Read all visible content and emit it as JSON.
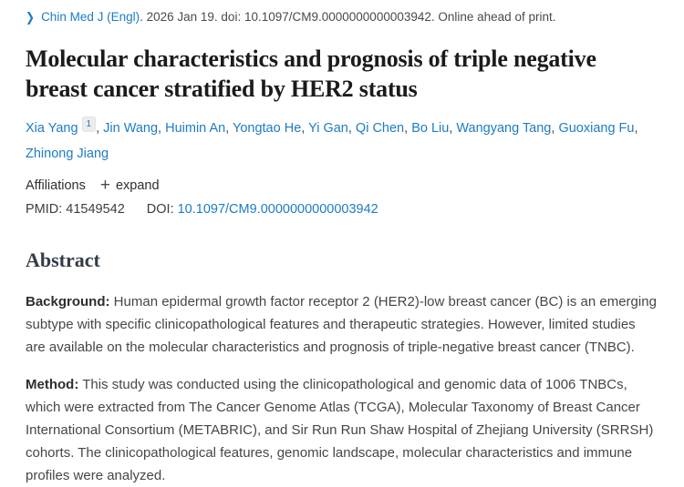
{
  "header": {
    "journal": "Chin Med J (Engl)",
    "citation": ". 2026 Jan 19. doi: 10.1097/CM9.0000000000003942. Online ahead of print."
  },
  "title": "Molecular characteristics and prognosis of triple negative breast cancer stratified by HER2 status",
  "authors": [
    {
      "name": "Xia Yang",
      "sup": "1"
    },
    {
      "name": "Jin Wang"
    },
    {
      "name": "Huimin An"
    },
    {
      "name": "Yongtao He"
    },
    {
      "name": "Yi Gan"
    },
    {
      "name": "Qi Chen"
    },
    {
      "name": "Bo Liu"
    },
    {
      "name": "Wangyang Tang"
    },
    {
      "name": "Guoxiang Fu"
    },
    {
      "name": "Zhinong Jiang"
    }
  ],
  "affiliations": {
    "label": "Affiliations",
    "plus_icon": "+",
    "expand_label": "expand"
  },
  "identifiers": {
    "pmid_label": "PMID:",
    "pmid": "41549542",
    "doi_label": "DOI:",
    "doi": "10.1097/CM9.0000000000003942"
  },
  "abstract": {
    "heading": "Abstract",
    "sections": [
      {
        "label": "Background:",
        "text": "Human epidermal growth factor receptor 2 (HER2)-low breast cancer (BC) is an emerging subtype with specific clinicopathological features and therapeutic strategies. However, limited studies are available on the molecular characteristics and prognosis of triple-negative breast cancer (TNBC)."
      },
      {
        "label": "Method:",
        "text": "This study was conducted using the clinicopathological and genomic data of 1006 TNBCs, which were extracted from The Cancer Genome Atlas (TCGA), Molecular Taxonomy of Breast Cancer International Consortium (METABRIC), and Sir Run Run Shaw Hospital of Zhejiang University (SRRSH) cohorts. The clinicopathological features, genomic landscape, molecular characteristics and immune profiles were analyzed."
      }
    ]
  },
  "icons": {
    "journal_chevron": "chevron-right",
    "expand_plus": "plus"
  },
  "colors": {
    "link_blue": "#1d7cc4",
    "body_text": "#464646",
    "title_text": "#1b1b1b",
    "heading_text": "#333d47"
  }
}
